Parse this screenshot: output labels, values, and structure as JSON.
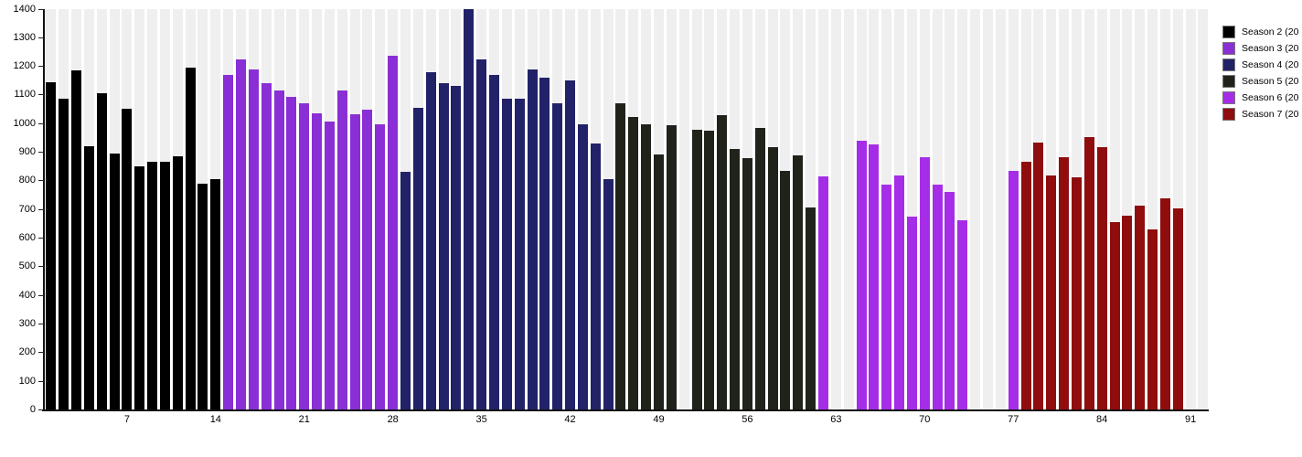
{
  "chart_data": {
    "type": "bar",
    "title": "",
    "xlabel": "",
    "ylabel": "",
    "ylim": [
      0,
      1400
    ],
    "y_ticks": [
      0,
      100,
      200,
      300,
      400,
      500,
      600,
      700,
      800,
      900,
      1000,
      1100,
      1200,
      1300,
      1400
    ],
    "x_ticks": [
      7,
      14,
      21,
      28,
      35,
      42,
      49,
      56,
      63,
      70,
      77,
      84,
      91
    ],
    "total_slots": 92,
    "grid": "vertical-column-stripes",
    "legend_position": "right-outside-clipped",
    "series": [
      {
        "name": "Season 2 (20",
        "color": "#000000",
        "start_ep": 1,
        "values": [
          1145,
          1088,
          1185,
          922,
          1105,
          896,
          1052,
          850,
          867,
          867,
          886,
          1197,
          790,
          806
        ]
      },
      {
        "name": "Season 3 (20",
        "color": "#8a2fd6",
        "start_ep": 15,
        "values": [
          1171,
          1223,
          1189,
          1141,
          1115,
          1093,
          1072,
          1036,
          1007,
          1116,
          1034,
          1048,
          998,
          1237
        ]
      },
      {
        "name": "Season 4 (20",
        "color": "#222268",
        "start_ep": 29,
        "values": [
          832,
          1056,
          1180,
          1143,
          1132,
          1400,
          1225,
          1171,
          1086,
          1086,
          1189,
          1160,
          1071,
          1150,
          998,
          931,
          806
        ]
      },
      {
        "name": "Season 5 (20",
        "color": "#20231a",
        "start_ep": 46,
        "values": [
          1072,
          1022,
          998,
          891,
          994,
          null,
          979,
          977,
          1031,
          911,
          879,
          984,
          917,
          835,
          889,
          707
        ]
      },
      {
        "name": "Season 6 (20",
        "color": "#a62de8",
        "start_ep": 62,
        "values": [
          816,
          null,
          null,
          941,
          927,
          787,
          820,
          675,
          883,
          788,
          760,
          664,
          null,
          null,
          null,
          834
        ]
      },
      {
        "name": "Season 7 (20",
        "color": "#8f0d0d",
        "start_ep": 78,
        "values": [
          867,
          933,
          818,
          883,
          812,
          954,
          918,
          656,
          678,
          713,
          630,
          738,
          704
        ]
      }
    ]
  },
  "colors": {
    "background": "#ffffff",
    "stripe": "#efefef",
    "axis": "#111111"
  }
}
